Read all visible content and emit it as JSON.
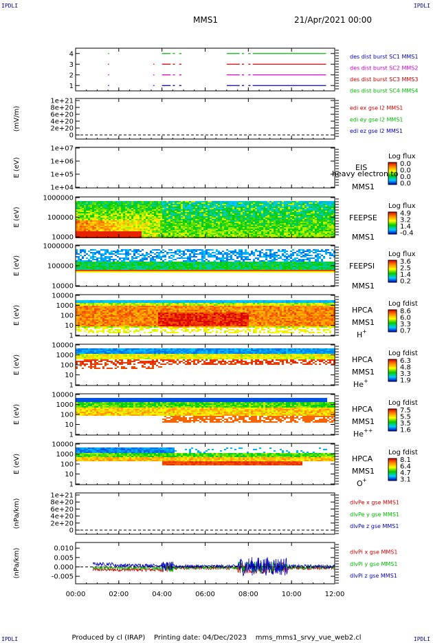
{
  "header": {
    "corner_label": "IPDLI",
    "spacecraft": "MMS1",
    "date_time": "21/Apr/2021 00:00"
  },
  "footer": {
    "produced_by": "Produced by cl (IRAP)",
    "printing_date": "Printing date: 04/Dec/2023",
    "file_name": "mms_mms1_srvy_vue_web2.cl"
  },
  "colors": {
    "blue": "#0000cc",
    "magenta": "#cc00cc",
    "red": "#cc0000",
    "green": "#00bb00"
  },
  "chart_data": [
    {
      "type": "line",
      "id": "des-burst",
      "ylim": [
        0.5,
        4.5
      ],
      "y_ticks": [
        "1",
        "2",
        "3",
        "4"
      ],
      "series": [
        {
          "name": "des dist burst SC1 MMS1",
          "y": 1,
          "color": "#0000cc",
          "intervals": [
            [
              1.5,
              1.53
            ],
            [
              3.6,
              3.63
            ],
            [
              4.0,
              4.4
            ],
            [
              4.5,
              4.6
            ],
            [
              4.8,
              4.9
            ],
            [
              7.0,
              7.6
            ],
            [
              7.7,
              7.8
            ],
            [
              8.0,
              8.1
            ],
            [
              8.2,
              11.6
            ]
          ]
        },
        {
          "name": "des dist burst SC2 MMS2",
          "y": 2,
          "color": "#cc00cc",
          "intervals": [
            [
              1.5,
              1.53
            ],
            [
              3.6,
              3.63
            ],
            [
              4.0,
              4.4
            ],
            [
              4.5,
              4.6
            ],
            [
              4.8,
              4.9
            ],
            [
              7.0,
              7.6
            ],
            [
              7.7,
              7.8
            ],
            [
              8.0,
              8.1
            ],
            [
              8.2,
              11.6
            ]
          ]
        },
        {
          "name": "des dist burst SC3 MMS3",
          "y": 3,
          "color": "#cc0000",
          "intervals": [
            [
              1.5,
              1.53
            ],
            [
              3.6,
              3.63
            ],
            [
              4.0,
              4.4
            ],
            [
              4.5,
              4.6
            ],
            [
              4.8,
              4.9
            ],
            [
              7.0,
              7.6
            ],
            [
              7.7,
              7.8
            ],
            [
              8.0,
              8.1
            ],
            [
              8.2,
              11.6
            ]
          ]
        },
        {
          "name": "des dist burst SC4 MMS4",
          "y": 4,
          "color": "#00bb00",
          "intervals": [
            [
              1.5,
              1.53
            ],
            [
              4.0,
              4.4
            ],
            [
              4.5,
              4.6
            ],
            [
              4.8,
              4.9
            ],
            [
              7.0,
              7.6
            ],
            [
              7.7,
              7.8
            ],
            [
              8.0,
              8.1
            ],
            [
              8.2,
              11.6
            ]
          ]
        }
      ]
    },
    {
      "type": "line",
      "id": "edi-e",
      "ylabel": "(mV/m)",
      "y_ticks": [
        "1e+21",
        "8e+20",
        "6e+20",
        "4e+20",
        "2e+20",
        "0"
      ],
      "dashed_zero": true,
      "legend": [
        {
          "text": "edi ex gse l2 MMS1",
          "color": "#cc0000"
        },
        {
          "text": "edi ey gse l2 MMS1",
          "color": "#00bb00"
        },
        {
          "text": "edi ez gse l2 MMS1",
          "color": "#0000cc"
        }
      ]
    },
    {
      "type": "heatmap",
      "id": "eis",
      "ylabel": "E (eV)",
      "y_ticks": [
        "1e+07",
        "1e+06",
        "1e+05",
        "1e+04"
      ],
      "instrument": "EIS",
      "overlay_text": "heavy electron to",
      "spacecraft": "MMS1",
      "colorbar": {
        "title": "Log flux",
        "ticks": [
          "0.0",
          "0.0",
          "0.0",
          "0.0"
        ]
      }
    },
    {
      "type": "heatmap",
      "id": "feepse",
      "ylabel": "E (eV)",
      "y_ticks": [
        "1000000",
        "100000",
        "10000"
      ],
      "instrument": "FEEPSE",
      "spacecraft": "MMS1",
      "colorbar": {
        "title": "Log flux",
        "ticks": [
          "4.9",
          "3.2",
          "1.4",
          "-0.4"
        ]
      }
    },
    {
      "type": "heatmap",
      "id": "feepsi",
      "ylabel": "E (eV)",
      "y_ticks": [
        "1000000",
        "100000",
        "10000"
      ],
      "instrument": "FEEPSI",
      "spacecraft": "MMS1",
      "colorbar": {
        "title": "Log flux",
        "ticks": [
          "3.6",
          "2.5",
          "1.4",
          "0.2"
        ]
      }
    },
    {
      "type": "heatmap",
      "id": "hpca-h",
      "ylabel": "E (eV)",
      "y_ticks": [
        "10000",
        "1000",
        "100",
        "10",
        "1"
      ],
      "instrument": "HPCA",
      "spacecraft": "MMS1",
      "species": "H",
      "species_sup": "+",
      "colorbar": {
        "title": "Log fdist",
        "ticks": [
          "8.6",
          "6.0",
          "3.3",
          "0.7"
        ]
      }
    },
    {
      "type": "heatmap",
      "id": "hpca-he",
      "ylabel": "E (eV)",
      "y_ticks": [
        "10000",
        "1000",
        "100",
        "10",
        "1"
      ],
      "instrument": "HPCA",
      "spacecraft": "MMS1",
      "species": "He",
      "species_sup": "+",
      "colorbar": {
        "title": "Log fdist",
        "ticks": [
          "6.3",
          "4.8",
          "3.3",
          "1.9"
        ]
      }
    },
    {
      "type": "heatmap",
      "id": "hpca-hepp",
      "ylabel": "E (eV)",
      "y_ticks": [
        "10000",
        "1000",
        "100",
        "10",
        "1"
      ],
      "instrument": "HPCA",
      "spacecraft": "MMS1",
      "species": "He",
      "species_sup": "++",
      "colorbar": {
        "title": "Log fdist",
        "ticks": [
          "7.5",
          "5.5",
          "3.5",
          "1.6"
        ]
      }
    },
    {
      "type": "heatmap",
      "id": "hpca-o",
      "ylabel": "E (eV)",
      "y_ticks": [
        "10000",
        "1000",
        "100",
        "10",
        "1"
      ],
      "instrument": "HPCA",
      "spacecraft": "MMS1",
      "species": "O",
      "species_sup": "+",
      "colorbar": {
        "title": "Log fdist",
        "ticks": [
          "8.1",
          "6.4",
          "4.7",
          "3.1"
        ]
      }
    },
    {
      "type": "line",
      "id": "divpe",
      "ylabel": "(nPa/km)",
      "y_ticks": [
        "1e+21",
        "8e+20",
        "6e+20",
        "4e+20",
        "2e+20",
        "0"
      ],
      "dashed_zero": true,
      "legend": [
        {
          "text": "dlvPe x gse MMS1",
          "color": "#cc0000"
        },
        {
          "text": "dlvPe y gse MMS1",
          "color": "#00bb00"
        },
        {
          "text": "dlvPe z gse MMS1",
          "color": "#0000cc"
        }
      ]
    },
    {
      "type": "line",
      "id": "divpi",
      "ylabel": "(nPa/km)",
      "ylim": [
        -0.009,
        0.013
      ],
      "y_ticks": [
        "0.010",
        "0.005",
        "0.000",
        "-0.005"
      ],
      "y_tick_values": [
        0.01,
        0.005,
        0.0,
        -0.005
      ],
      "dashed_zero": true,
      "legend": [
        {
          "text": "dlvPi x gse MMS1",
          "color": "#cc0000"
        },
        {
          "text": "dlvPi y gse MMS1",
          "color": "#00bb00"
        },
        {
          "text": "dlvPi z gse MMS1",
          "color": "#0000cc"
        }
      ]
    }
  ],
  "time_axis": {
    "range_hours": [
      0,
      12
    ],
    "tick_labels": [
      "00:00",
      "02:00",
      "04:00",
      "06:00",
      "08:00",
      "10:00",
      "12:00"
    ],
    "tick_hours": [
      0,
      2,
      4,
      6,
      8,
      10,
      12
    ]
  }
}
